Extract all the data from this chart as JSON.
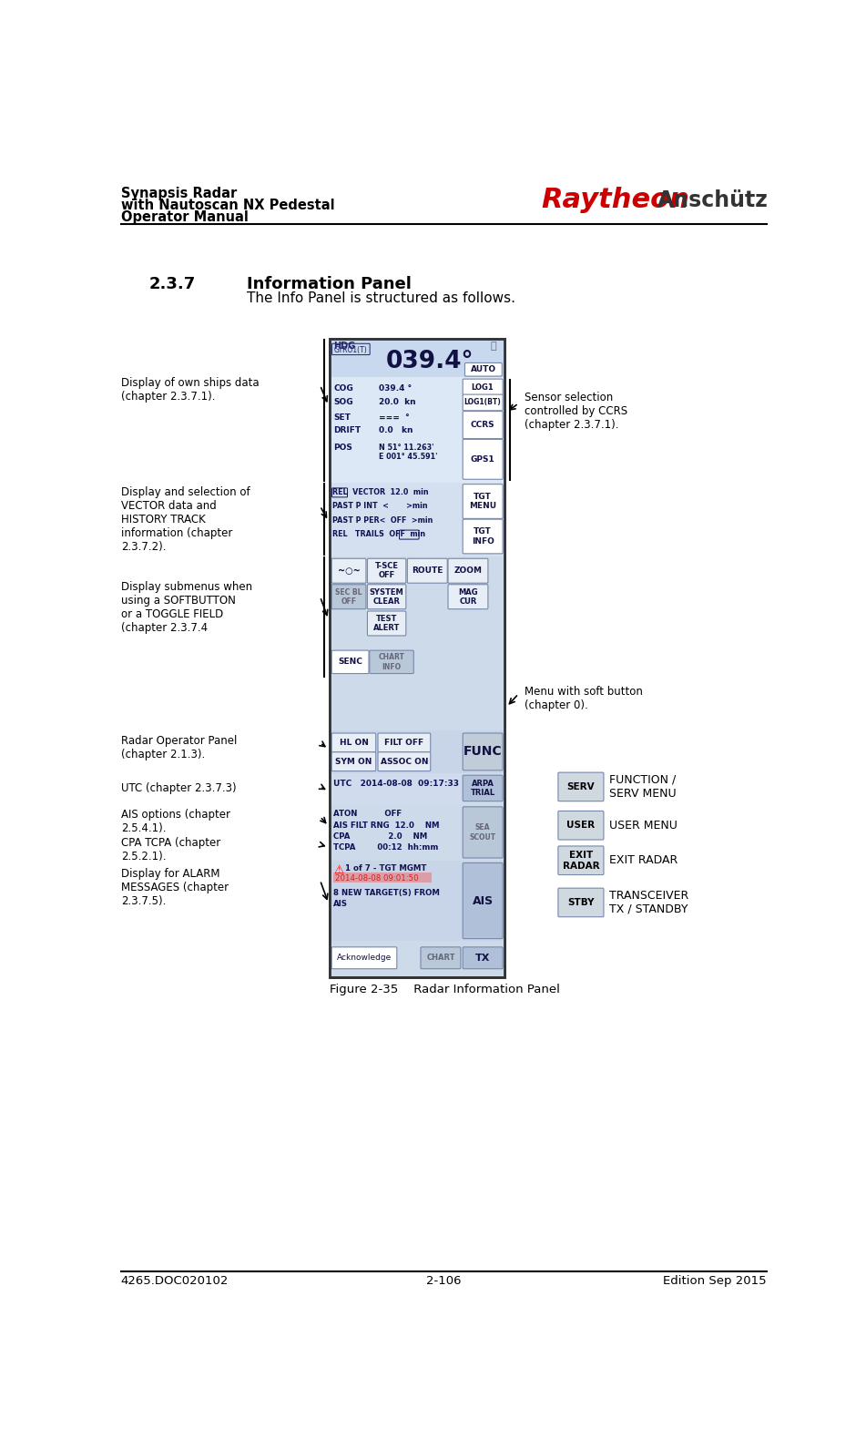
{
  "page_title_line1": "Synapsis Radar",
  "page_title_line2": "with Nautoscan NX Pedestal",
  "page_title_line3": "Operator Manual",
  "logo_raytheon": "Raytheon",
  "logo_anschutz": "Anschütz",
  "footer_left": "4265.DOC020102",
  "footer_center": "2-106",
  "footer_right": "Edition Sep 2015",
  "section_number": "2.3.7",
  "section_title": "Information Panel",
  "section_intro": "The Info Panel is structured as follows.",
  "figure_caption": "Figure 2-35    Radar Information Panel",
  "panel_bg": "#d4e0f0",
  "panel_border": "#444444"
}
